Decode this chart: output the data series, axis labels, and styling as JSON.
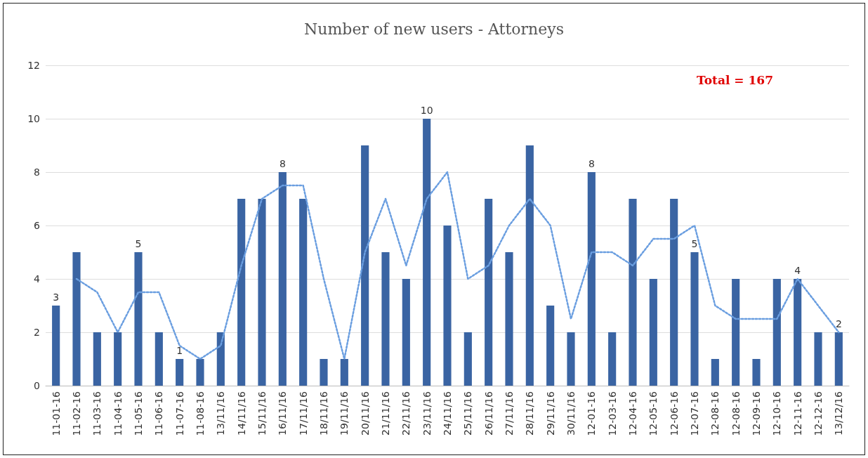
{
  "chart_data": {
    "type": "bar",
    "title": "Number of new users - Attorneys",
    "categories": [
      "11-01-16",
      "11-02-16",
      "11-03-16",
      "11-04-16",
      "11-05-16",
      "11-06-16",
      "11-07-16",
      "11-08-16",
      "13/11/16",
      "14/11/16",
      "15/11/16",
      "16/11/16",
      "17/11/16",
      "18/11/16",
      "19/11/16",
      "20/11/16",
      "21/11/16",
      "22/11/16",
      "23/11/16",
      "24/11/16",
      "25/11/16",
      "26/11/16",
      "27/11/16",
      "28/11/16",
      "29/11/16",
      "30/11/16",
      "12-01-16",
      "12-03-16",
      "12-04-16",
      "12-05-16",
      "12-06-16",
      "12-07-16",
      "12-08-16",
      "12-08-16",
      "12-09-16",
      "12-10-16",
      "12-11-16",
      "12-12-16",
      "13/12/16"
    ],
    "series": [
      {
        "color": "#3a64a3",
        "values": [
          3,
          5,
          2,
          2,
          5,
          2,
          1,
          1,
          2,
          7,
          7,
          8,
          7,
          1,
          1,
          9,
          5,
          4,
          10,
          6,
          2,
          7,
          5,
          9,
          3,
          2,
          8,
          2,
          7,
          4,
          7,
          5,
          1,
          4,
          1,
          4,
          4,
          2,
          2
        ],
        "value_labels": [
          "3",
          null,
          null,
          null,
          "5",
          null,
          "1",
          null,
          null,
          null,
          null,
          "8",
          null,
          null,
          null,
          null,
          null,
          null,
          "10",
          null,
          null,
          null,
          null,
          null,
          null,
          null,
          "8",
          null,
          null,
          null,
          null,
          "5",
          null,
          null,
          null,
          null,
          "4",
          null,
          "2"
        ]
      },
      {
        "type": "line",
        "color": "#6a9ee0",
        "line_style": "dotted",
        "marker": "none",
        "values": [
          null,
          4,
          3.5,
          2,
          3.5,
          3.5,
          1.5,
          1,
          1.5,
          4.5,
          7,
          7.5,
          7.5,
          4,
          1,
          5,
          7,
          4.5,
          7,
          8,
          4,
          4.5,
          6,
          7,
          6,
          2.5,
          5,
          5,
          4.5,
          5.5,
          5.5,
          6,
          3,
          2.5,
          2.5,
          2.5,
          4,
          3,
          2
        ]
      }
    ],
    "ylim": [
      0,
      12
    ],
    "yticks": [
      0,
      2,
      4,
      6,
      8,
      10,
      12
    ],
    "grid": "y",
    "annotations": [
      "Total = 167"
    ]
  }
}
